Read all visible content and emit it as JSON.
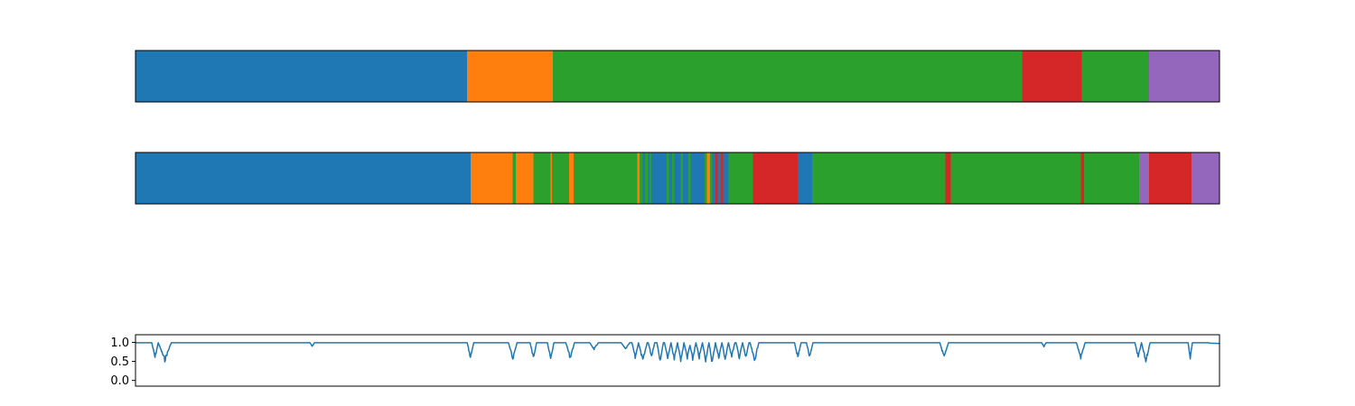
{
  "colors": {
    "blue": "#1f77b4",
    "orange": "#ff7f0e",
    "green": "#2ca02c",
    "red": "#d62728",
    "purple": "#9467bd",
    "line": "#1f77b4",
    "frame": "#000000"
  },
  "chart_data": [
    {
      "type": "bar",
      "subtype": "state-sequence",
      "xlim": [
        0,
        1000
      ],
      "segments": [
        {
          "start": 0,
          "end": 306,
          "state": 0,
          "color": "blue"
        },
        {
          "start": 306,
          "end": 385,
          "state": 1,
          "color": "orange"
        },
        {
          "start": 385,
          "end": 818,
          "state": 2,
          "color": "green"
        },
        {
          "start": 818,
          "end": 873,
          "state": 3,
          "color": "red"
        },
        {
          "start": 873,
          "end": 935,
          "state": 2,
          "color": "green"
        },
        {
          "start": 935,
          "end": 1000,
          "state": 4,
          "color": "purple"
        }
      ]
    },
    {
      "type": "bar",
      "subtype": "state-sequence",
      "xlim": [
        0,
        1000
      ],
      "segments": [
        {
          "start": 0,
          "end": 309,
          "state": 0,
          "color": "blue"
        },
        {
          "start": 309,
          "end": 348,
          "state": 1,
          "color": "orange"
        },
        {
          "start": 348,
          "end": 351,
          "state": 2,
          "color": "green"
        },
        {
          "start": 351,
          "end": 367,
          "state": 1,
          "color": "orange"
        },
        {
          "start": 367,
          "end": 383,
          "state": 2,
          "color": "green"
        },
        {
          "start": 383,
          "end": 384,
          "state": 1,
          "color": "orange"
        },
        {
          "start": 384,
          "end": 400,
          "state": 2,
          "color": "green"
        },
        {
          "start": 400,
          "end": 404,
          "state": 1,
          "color": "orange"
        },
        {
          "start": 404,
          "end": 463,
          "state": 2,
          "color": "green"
        },
        {
          "start": 463,
          "end": 465,
          "state": 1,
          "color": "orange"
        },
        {
          "start": 465,
          "end": 468,
          "state": 2,
          "color": "green"
        },
        {
          "start": 468,
          "end": 470,
          "state": 0,
          "color": "blue"
        },
        {
          "start": 470,
          "end": 473,
          "state": 2,
          "color": "green"
        },
        {
          "start": 473,
          "end": 474,
          "state": 0,
          "color": "blue"
        },
        {
          "start": 474,
          "end": 476,
          "state": 2,
          "color": "green"
        },
        {
          "start": 476,
          "end": 490,
          "state": 0,
          "color": "blue"
        },
        {
          "start": 490,
          "end": 492,
          "state": 2,
          "color": "green"
        },
        {
          "start": 492,
          "end": 495,
          "state": 0,
          "color": "blue"
        },
        {
          "start": 495,
          "end": 497,
          "state": 2,
          "color": "green"
        },
        {
          "start": 497,
          "end": 503,
          "state": 0,
          "color": "blue"
        },
        {
          "start": 503,
          "end": 505,
          "state": 2,
          "color": "green"
        },
        {
          "start": 505,
          "end": 510,
          "state": 0,
          "color": "blue"
        },
        {
          "start": 510,
          "end": 512,
          "state": 2,
          "color": "green"
        },
        {
          "start": 512,
          "end": 525,
          "state": 0,
          "color": "blue"
        },
        {
          "start": 525,
          "end": 527,
          "state": 2,
          "color": "green"
        },
        {
          "start": 527,
          "end": 530,
          "state": 1,
          "color": "orange"
        },
        {
          "start": 530,
          "end": 532,
          "state": 2,
          "color": "green"
        },
        {
          "start": 532,
          "end": 535,
          "state": 0,
          "color": "blue"
        },
        {
          "start": 535,
          "end": 537,
          "state": 3,
          "color": "red"
        },
        {
          "start": 537,
          "end": 540,
          "state": 0,
          "color": "blue"
        },
        {
          "start": 540,
          "end": 542,
          "state": 3,
          "color": "red"
        },
        {
          "start": 542,
          "end": 547,
          "state": 0,
          "color": "blue"
        },
        {
          "start": 547,
          "end": 569,
          "state": 2,
          "color": "green"
        },
        {
          "start": 569,
          "end": 570,
          "state": 0,
          "color": "blue"
        },
        {
          "start": 570,
          "end": 611,
          "state": 3,
          "color": "red"
        },
        {
          "start": 611,
          "end": 624,
          "state": 0,
          "color": "blue"
        },
        {
          "start": 624,
          "end": 747,
          "state": 2,
          "color": "green"
        },
        {
          "start": 747,
          "end": 752,
          "state": 3,
          "color": "red"
        },
        {
          "start": 752,
          "end": 872,
          "state": 2,
          "color": "green"
        },
        {
          "start": 872,
          "end": 875,
          "state": 3,
          "color": "red"
        },
        {
          "start": 875,
          "end": 926,
          "state": 2,
          "color": "green"
        },
        {
          "start": 926,
          "end": 935,
          "state": 4,
          "color": "purple"
        },
        {
          "start": 935,
          "end": 974,
          "state": 3,
          "color": "red"
        },
        {
          "start": 974,
          "end": 1000,
          "state": 4,
          "color": "purple"
        }
      ]
    },
    {
      "type": "line",
      "xlim": [
        0,
        1000
      ],
      "ylim": [
        -0.15,
        1.2
      ],
      "yticks": [
        0.0,
        0.5,
        1.0
      ],
      "ytick_labels": [
        "0.0",
        "0.5",
        "1.0"
      ],
      "xticks": [],
      "grid": false,
      "baseline": 0.99,
      "dips": [
        {
          "x": 18,
          "min": 0.55,
          "width": 3
        },
        {
          "x": 27,
          "min": 0.48,
          "width": 6
        },
        {
          "x": 163,
          "min": 0.88,
          "width": 2
        },
        {
          "x": 309,
          "min": 0.55,
          "width": 3
        },
        {
          "x": 348,
          "min": 0.52,
          "width": 4
        },
        {
          "x": 367,
          "min": 0.55,
          "width": 3
        },
        {
          "x": 383,
          "min": 0.5,
          "width": 3
        },
        {
          "x": 401,
          "min": 0.55,
          "width": 4
        },
        {
          "x": 423,
          "min": 0.8,
          "width": 4
        },
        {
          "x": 452,
          "min": 0.8,
          "width": 4
        },
        {
          "x": 461,
          "min": 0.55,
          "width": 3
        },
        {
          "x": 468,
          "min": 0.45,
          "width": 4
        },
        {
          "x": 476,
          "min": 0.6,
          "width": 3
        },
        {
          "x": 484,
          "min": 0.48,
          "width": 3
        },
        {
          "x": 491,
          "min": 0.55,
          "width": 3
        },
        {
          "x": 497,
          "min": 0.5,
          "width": 3
        },
        {
          "x": 503,
          "min": 0.45,
          "width": 3
        },
        {
          "x": 509,
          "min": 0.55,
          "width": 3
        },
        {
          "x": 514,
          "min": 0.5,
          "width": 3
        },
        {
          "x": 520,
          "min": 0.55,
          "width": 3
        },
        {
          "x": 526,
          "min": 0.48,
          "width": 3
        },
        {
          "x": 532,
          "min": 0.4,
          "width": 3
        },
        {
          "x": 538,
          "min": 0.55,
          "width": 3
        },
        {
          "x": 544,
          "min": 0.5,
          "width": 3
        },
        {
          "x": 550,
          "min": 0.6,
          "width": 3
        },
        {
          "x": 557,
          "min": 0.55,
          "width": 3
        },
        {
          "x": 563,
          "min": 0.55,
          "width": 3
        },
        {
          "x": 571,
          "min": 0.45,
          "width": 4
        },
        {
          "x": 611,
          "min": 0.55,
          "width": 3
        },
        {
          "x": 622,
          "min": 0.55,
          "width": 3
        },
        {
          "x": 746,
          "min": 0.55,
          "width": 4
        },
        {
          "x": 838,
          "min": 0.88,
          "width": 2
        },
        {
          "x": 872,
          "min": 0.55,
          "width": 4
        },
        {
          "x": 925,
          "min": 0.55,
          "width": 3
        },
        {
          "x": 932,
          "min": 0.45,
          "width": 4
        },
        {
          "x": 973,
          "min": 0.55,
          "width": 2
        }
      ]
    }
  ]
}
